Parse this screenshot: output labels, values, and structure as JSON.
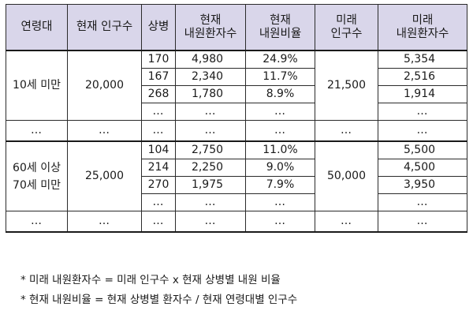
{
  "table": {
    "headers": [
      "연령대",
      "현재 인구수",
      "상병",
      "현재\n내원환자수",
      "현재\n내원비율",
      "미래\n인구수",
      "미래\n내원환자수"
    ],
    "groups": [
      {
        "age": "10세 미만",
        "population": "20,000",
        "future_population": "21,500",
        "rows": [
          [
            "170",
            "4,980",
            "24.9%",
            "5,354"
          ],
          [
            "167",
            "2,340",
            "11.7%",
            "2,516"
          ],
          [
            "268",
            "1,780",
            "8.9%",
            "1,914"
          ],
          [
            "…",
            "…",
            "…",
            "…"
          ]
        ]
      },
      {
        "age": "60세 이상\n70세 미만",
        "population": "25,000",
        "future_population": "50,000",
        "rows": [
          [
            "104",
            "2,750",
            "11.0%",
            "5,500"
          ],
          [
            "214",
            "2,250",
            "9.0%",
            "4,500"
          ],
          [
            "270",
            "1,975",
            "7.9%",
            "3,950"
          ],
          [
            "…",
            "…",
            "…",
            "…"
          ]
        ]
      }
    ],
    "ellipsis_row": [
      "…",
      "…",
      "…",
      "…",
      "…",
      "…",
      "…"
    ]
  },
  "notes": [
    "* 미래 내원환자수 = 미래 인구수 x 현재 상병별 내원 비율",
    "* 현재 내원비율 = 현재 상병별 환자수 / 현재 연령대별 인구수"
  ]
}
